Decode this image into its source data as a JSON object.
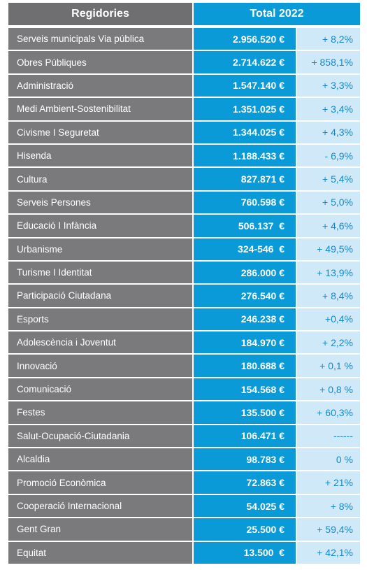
{
  "header": {
    "col_regidories": "Regidories",
    "col_total": "Total 2022"
  },
  "rows": [
    {
      "name": "Serveis municipals Via pública",
      "total": "2.956.520 €",
      "var": "+ 8,2%"
    },
    {
      "name": "Obres Públiques",
      "total": "2.714.622 €",
      "var": "+ 858,1%"
    },
    {
      "name": "Administració",
      "total": "1.547.140 €",
      "var": "+ 3,3%"
    },
    {
      "name": "Medi Ambient-Sostenibilitat",
      "total": "1.351.025 €",
      "var": "+ 3,4%"
    },
    {
      "name": "Civisme I Seguretat",
      "total": "1.344.025 €",
      "var": "+ 4,3%"
    },
    {
      "name": "Hisenda",
      "total": "1.188.433 €",
      "var": "- 6,9%"
    },
    {
      "name": "Cultura",
      "total": "827.871 €",
      "var": "+ 5,4%"
    },
    {
      "name": "Serveis Persones",
      "total": "760.598 €",
      "var": "+ 5,0%"
    },
    {
      "name": "Educació I Infància",
      "total": "506.137  €",
      "var": "+ 4,6%"
    },
    {
      "name": "Urbanisme",
      "total": "324-546  €",
      "var": "+ 49,5%"
    },
    {
      "name": "Turisme I Identitat",
      "total": "286.000 €",
      "var": "+ 13,9%"
    },
    {
      "name": "Participació Ciutadana",
      "total": "276.540 €",
      "var": "+ 8,4%"
    },
    {
      "name": "Esports",
      "total": "246.238 €",
      "var": "+0,4%"
    },
    {
      "name": "Adolescència i Joventut",
      "total": "184.970 €",
      "var": "+ 2,2%"
    },
    {
      "name": "Innovació",
      "total": "180.688 €",
      "var": "+ 0,1 %"
    },
    {
      "name": "Comunicació",
      "total": "154.568 €",
      "var": "+ 0,8 %"
    },
    {
      "name": "Festes",
      "total": "135.500 €",
      "var": "+ 60,3%"
    },
    {
      "name": "Salut-Ocupació-Ciutadania",
      "total": "106.471 €",
      "var": "------"
    },
    {
      "name": "Alcaldia",
      "total": "98.783 €",
      "var": "0 %"
    },
    {
      "name": "Promoció Econòmica",
      "total": "72.863 €",
      "var": "+ 21%"
    },
    {
      "name": "Cooperació Internacional",
      "total": "54.025 €",
      "var": "+ 8%"
    },
    {
      "name": "Gent Gran",
      "total": "25.500 €",
      "var": "+ 59,4%"
    },
    {
      "name": "Equitat",
      "total": "13.500  €",
      "var": "+ 42,1%"
    }
  ]
}
